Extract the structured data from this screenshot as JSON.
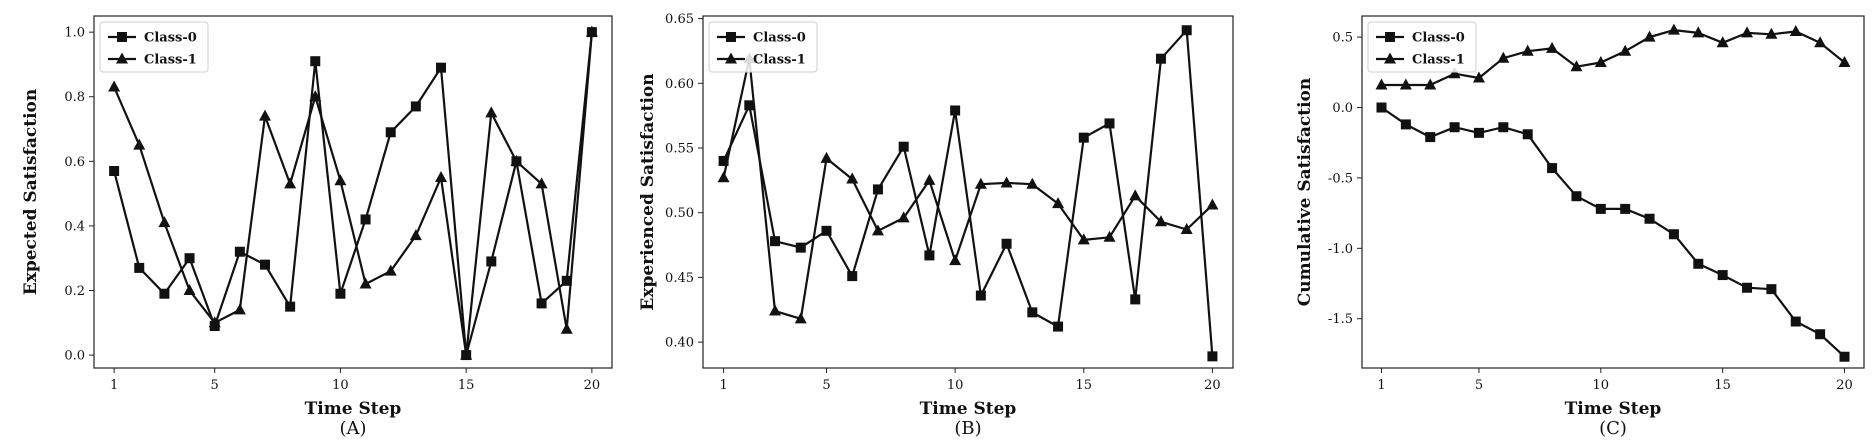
{
  "chart_data": [
    {
      "type": "line",
      "caption": "(A)",
      "xlabel": "Time Step",
      "ylabel": "Expected Satisfaction",
      "xlim": [
        0.2,
        20.8
      ],
      "ylim": [
        -0.04,
        1.05
      ],
      "xticks": [
        1,
        5,
        10,
        15,
        20
      ],
      "yticks": [
        "0.0",
        "0.2",
        "0.4",
        "0.6",
        "0.8",
        "1.0"
      ],
      "legend": "upper-left",
      "x": [
        1,
        2,
        3,
        4,
        5,
        6,
        7,
        8,
        9,
        10,
        11,
        12,
        13,
        14,
        15,
        16,
        17,
        18,
        19,
        20
      ],
      "series": [
        {
          "name": "Class-0",
          "marker": "square",
          "values": [
            0.57,
            0.27,
            0.19,
            0.3,
            0.09,
            0.32,
            0.28,
            0.15,
            0.91,
            0.19,
            0.42,
            0.69,
            0.77,
            0.89,
            0.0,
            0.29,
            0.6,
            0.16,
            0.23,
            1.0
          ]
        },
        {
          "name": "Class-1",
          "marker": "triangle",
          "values": [
            0.83,
            0.65,
            0.41,
            0.2,
            0.1,
            0.14,
            0.74,
            0.53,
            0.8,
            0.54,
            0.22,
            0.26,
            0.37,
            0.55,
            0.0,
            0.75,
            0.6,
            0.53,
            0.08,
            1.0
          ]
        }
      ]
    },
    {
      "type": "line",
      "caption": "(B)",
      "xlabel": "Time Step",
      "ylabel": "Experienced Satisfaction",
      "xlim": [
        0.2,
        20.8
      ],
      "ylim": [
        0.38,
        0.652
      ],
      "xticks": [
        1,
        5,
        10,
        15,
        20
      ],
      "yticks": [
        "0.40",
        "0.45",
        "0.50",
        "0.55",
        "0.60",
        "0.65"
      ],
      "legend": "upper-left",
      "x": [
        1,
        2,
        3,
        4,
        5,
        6,
        7,
        8,
        9,
        10,
        11,
        12,
        13,
        14,
        15,
        16,
        17,
        18,
        19,
        20
      ],
      "series": [
        {
          "name": "Class-0",
          "marker": "square",
          "values": [
            0.54,
            0.583,
            0.478,
            0.473,
            0.486,
            0.451,
            0.518,
            0.551,
            0.467,
            0.579,
            0.436,
            0.476,
            0.423,
            0.412,
            0.558,
            0.569,
            0.433,
            0.619,
            0.641,
            0.389
          ]
        },
        {
          "name": "Class-1",
          "marker": "triangle",
          "values": [
            0.527,
            0.619,
            0.424,
            0.418,
            0.542,
            0.526,
            0.486,
            0.496,
            0.525,
            0.463,
            0.522,
            0.523,
            0.522,
            0.507,
            0.479,
            0.481,
            0.513,
            0.493,
            0.487,
            0.506
          ]
        }
      ]
    },
    {
      "type": "line",
      "caption": "(C)",
      "xlabel": "Time Step",
      "ylabel": "Cumulative Satisfaction",
      "xlim": [
        0.2,
        20.8
      ],
      "ylim": [
        -1.85,
        0.65
      ],
      "xticks": [
        1,
        5,
        10,
        15,
        20
      ],
      "yticks": [
        "0.5",
        "0.0",
        "-0.5",
        "-1.0",
        "-1.5"
      ],
      "legend": "upper-left",
      "x": [
        1,
        2,
        3,
        4,
        5,
        6,
        7,
        8,
        9,
        10,
        11,
        12,
        13,
        14,
        15,
        16,
        17,
        18,
        19,
        20
      ],
      "series": [
        {
          "name": "Class-0",
          "marker": "square",
          "values": [
            0.0,
            -0.12,
            -0.21,
            -0.14,
            -0.18,
            -0.14,
            -0.19,
            -0.43,
            -0.63,
            -0.72,
            -0.72,
            -0.79,
            -0.9,
            -1.11,
            -1.19,
            -1.28,
            -1.29,
            -1.52,
            -1.61,
            -1.77
          ]
        },
        {
          "name": "Class-1",
          "marker": "triangle",
          "values": [
            0.16,
            0.16,
            0.16,
            0.24,
            0.21,
            0.35,
            0.4,
            0.42,
            0.29,
            0.32,
            0.4,
            0.5,
            0.55,
            0.53,
            0.46,
            0.53,
            0.52,
            0.54,
            0.46,
            0.32
          ]
        }
      ]
    }
  ]
}
